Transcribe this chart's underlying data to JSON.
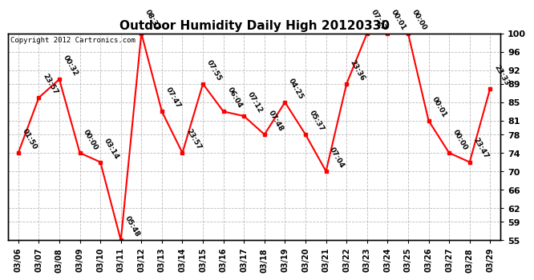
{
  "title": "Outdoor Humidity Daily High 20120330",
  "copyright": "Copyright 2012 Cartronics.com",
  "x_labels": [
    "03/06",
    "03/07",
    "03/08",
    "03/09",
    "03/10",
    "03/11",
    "03/12",
    "03/13",
    "03/14",
    "03/15",
    "03/16",
    "03/17",
    "03/18",
    "03/19",
    "03/20",
    "03/21",
    "03/22",
    "03/23",
    "03/24",
    "03/25",
    "03/26",
    "03/27",
    "03/28",
    "03/29"
  ],
  "y_values": [
    74,
    86,
    90,
    74,
    72,
    55,
    100,
    83,
    74,
    89,
    83,
    82,
    78,
    85,
    78,
    70,
    89,
    100,
    100,
    100,
    81,
    74,
    72,
    88
  ],
  "point_labels": [
    "01:50",
    "23:57",
    "00:32",
    "00:00",
    "03:14",
    "05:48",
    "08:37",
    "07:47",
    "23:57",
    "07:55",
    "06:04",
    "07:12",
    "07:48",
    "04:25",
    "05:37",
    "07:04",
    "23:36",
    "07:27",
    "00:01",
    "00:00",
    "00:01",
    "00:00",
    "23:47",
    "23:33"
  ],
  "ylim_min": 55,
  "ylim_max": 100,
  "yticks": [
    55,
    59,
    62,
    66,
    70,
    74,
    78,
    81,
    85,
    89,
    92,
    96,
    100
  ],
  "line_color": "red",
  "marker_color": "red",
  "bg_color": "white",
  "grid_color": "#aaaaaa",
  "title_fontsize": 11,
  "annot_fontsize": 6.5
}
